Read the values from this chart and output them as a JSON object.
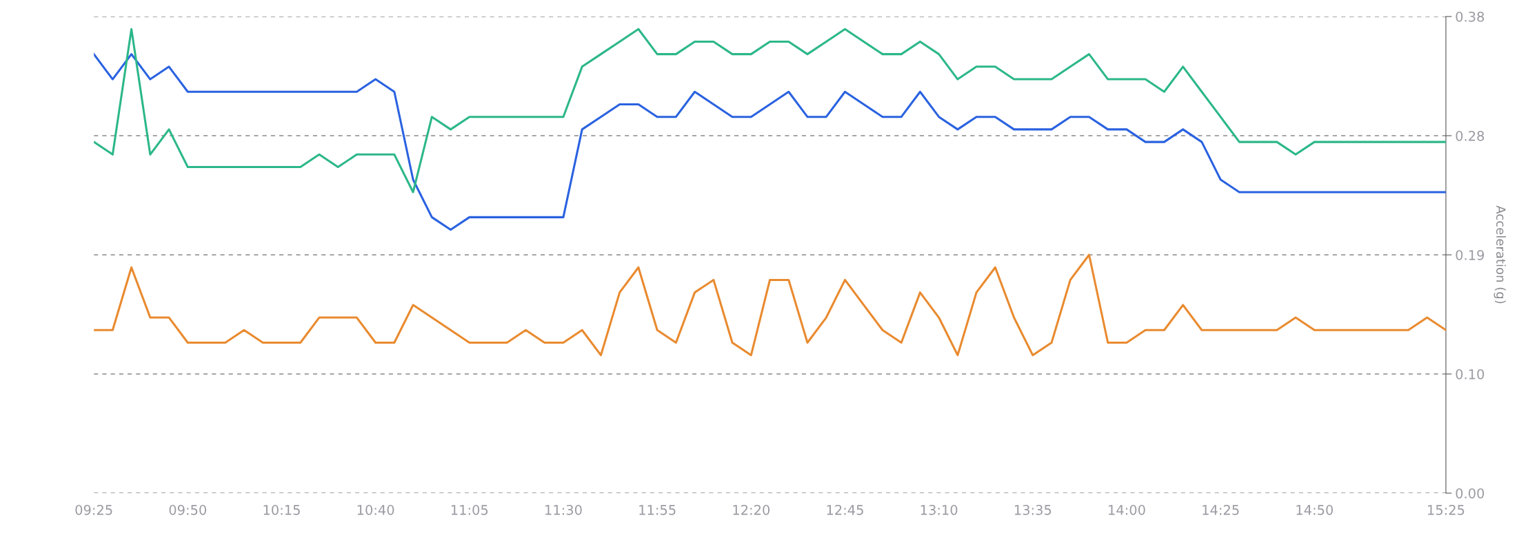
{
  "chart_data": {
    "type": "line",
    "ylabel": "Acceleration (g)",
    "x": [
      9.4167,
      9.5,
      9.5833,
      9.6667,
      9.75,
      9.8333,
      9.9167,
      10,
      10.0833,
      10.1667,
      10.25,
      10.3333,
      10.4167,
      10.5,
      10.5833,
      10.6667,
      10.75,
      10.8333,
      10.9167,
      11,
      11.0833,
      11.1667,
      11.25,
      11.3333,
      11.4167,
      11.5,
      11.5833,
      11.6667,
      11.75,
      11.8333,
      11.9167,
      12,
      12.0833,
      12.1667,
      12.25,
      12.3333,
      12.4167,
      12.5,
      12.5833,
      12.6667,
      12.75,
      12.8333,
      12.9167,
      13,
      13.0833,
      13.1667,
      13.25,
      13.3333,
      13.4167,
      13.5,
      13.5833,
      13.6667,
      13.75,
      13.8333,
      13.9167,
      14,
      14.0833,
      14.1667,
      14.25,
      14.3333,
      14.4167,
      14.5,
      14.5833,
      14.6667,
      14.75,
      14.8333,
      14.9167,
      15,
      15.0833,
      15.1667,
      15.25,
      15.3333,
      15.4167
    ],
    "series": [
      {
        "color": "#2a62e0",
        "values": [
          0.35,
          0.33,
          0.35,
          0.33,
          0.34,
          0.32,
          0.32,
          0.32,
          0.32,
          0.32,
          0.32,
          0.32,
          0.32,
          0.32,
          0.32,
          0.33,
          0.32,
          0.25,
          0.22,
          0.21,
          0.22,
          0.22,
          0.22,
          0.22,
          0.22,
          0.22,
          0.29,
          0.3,
          0.31,
          0.31,
          0.3,
          0.3,
          0.32,
          0.31,
          0.3,
          0.3,
          0.31,
          0.32,
          0.3,
          0.3,
          0.32,
          0.31,
          0.3,
          0.3,
          0.32,
          0.3,
          0.29,
          0.3,
          0.3,
          0.29,
          0.29,
          0.29,
          0.3,
          0.3,
          0.29,
          0.29,
          0.28,
          0.28,
          0.29,
          0.28,
          0.25,
          0.24,
          0.24,
          0.24,
          0.24,
          0.24,
          0.24,
          0.24,
          0.24,
          0.24,
          0.24,
          0.24,
          0.24
        ]
      },
      {
        "color": "#2cb78a",
        "values": [
          0.28,
          0.27,
          0.37,
          0.27,
          0.29,
          0.26,
          0.26,
          0.26,
          0.26,
          0.26,
          0.26,
          0.26,
          0.27,
          0.26,
          0.27,
          0.27,
          0.27,
          0.24,
          0.3,
          0.29,
          0.3,
          0.3,
          0.3,
          0.3,
          0.3,
          0.3,
          0.34,
          0.35,
          0.36,
          0.37,
          0.35,
          0.35,
          0.36,
          0.36,
          0.35,
          0.35,
          0.36,
          0.36,
          0.35,
          0.36,
          0.37,
          0.36,
          0.35,
          0.35,
          0.36,
          0.35,
          0.33,
          0.34,
          0.34,
          0.33,
          0.33,
          0.33,
          0.34,
          0.35,
          0.33,
          0.33,
          0.33,
          0.32,
          0.34,
          0.32,
          0.3,
          0.28,
          0.28,
          0.28,
          0.27,
          0.28,
          0.28,
          0.28,
          0.28,
          0.28,
          0.28,
          0.28,
          0.28
        ]
      },
      {
        "color": "#e98a2f",
        "values": [
          0.13,
          0.13,
          0.18,
          0.14,
          0.14,
          0.12,
          0.12,
          0.12,
          0.13,
          0.12,
          0.12,
          0.12,
          0.14,
          0.14,
          0.14,
          0.12,
          0.12,
          0.15,
          0.14,
          0.13,
          0.12,
          0.12,
          0.12,
          0.13,
          0.12,
          0.12,
          0.13,
          0.11,
          0.16,
          0.18,
          0.13,
          0.12,
          0.16,
          0.17,
          0.12,
          0.11,
          0.17,
          0.17,
          0.12,
          0.14,
          0.17,
          0.15,
          0.13,
          0.12,
          0.16,
          0.14,
          0.11,
          0.16,
          0.18,
          0.14,
          0.11,
          0.12,
          0.17,
          0.19,
          0.12,
          0.12,
          0.13,
          0.13,
          0.15,
          0.13,
          0.13,
          0.13,
          0.13,
          0.13,
          0.14,
          0.13,
          0.13,
          0.13,
          0.13,
          0.13,
          0.13,
          0.14,
          0.13
        ]
      }
    ],
    "xlim": [
      9.4167,
      15.4167
    ],
    "xticks": [
      {
        "value": 9.4167,
        "label": "09:25"
      },
      {
        "value": 9.8333,
        "label": "09:50"
      },
      {
        "value": 10.25,
        "label": "10:15"
      },
      {
        "value": 10.6667,
        "label": "10:40"
      },
      {
        "value": 11.0833,
        "label": "11:05"
      },
      {
        "value": 11.5,
        "label": "11:30"
      },
      {
        "value": 11.9167,
        "label": "11:55"
      },
      {
        "value": 12.3333,
        "label": "12:20"
      },
      {
        "value": 12.75,
        "label": "12:45"
      },
      {
        "value": 13.1667,
        "label": "13:10"
      },
      {
        "value": 13.5833,
        "label": "13:35"
      },
      {
        "value": 14,
        "label": "14:00"
      },
      {
        "value": 14.4167,
        "label": "14:25"
      },
      {
        "value": 14.8333,
        "label": "14:50"
      },
      {
        "value": 15.4167,
        "label": "15:25"
      }
    ],
    "ylim": [
      0,
      0.38
    ],
    "yticks": [
      {
        "value": 0,
        "label": "0.00"
      },
      {
        "value": 0.095,
        "label": "0.10"
      },
      {
        "value": 0.19,
        "label": "0.19"
      },
      {
        "value": 0.285,
        "label": "0.28"
      },
      {
        "value": 0.38,
        "label": "0.38"
      }
    ],
    "grid": "y",
    "legend": false,
    "marker": "none",
    "line_style": "solid"
  }
}
